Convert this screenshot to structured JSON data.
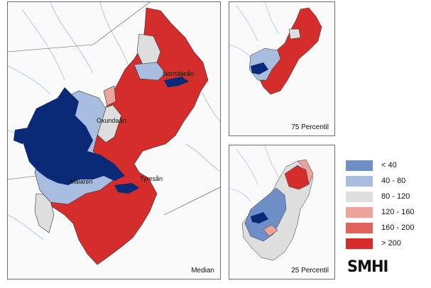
{
  "panels": {
    "median": {
      "caption": "Median"
    },
    "p75": {
      "caption": "75 Percentil"
    },
    "p25": {
      "caption": "25 Percentil"
    }
  },
  "places": {
    "norrtalje": "Norrtäljeån",
    "oxunda": "Oxundaån",
    "malaren": "Mälaren",
    "tyresa": "Tyresån"
  },
  "legend": [
    {
      "label": "< 40",
      "color": "#6e8ec7"
    },
    {
      "label": "40 - 80",
      "color": "#a9bde0"
    },
    {
      "label": "80 - 120",
      "color": "#dedede"
    },
    {
      "label": "120 - 160",
      "color": "#eba39b"
    },
    {
      "label": "160 - 200",
      "color": "#e2635b"
    },
    {
      "label": "> 200",
      "color": "#d42d2b"
    }
  ],
  "logo": "SMHI",
  "colors": {
    "lake": "#0a2a78",
    "river": "#a9cbe8",
    "border": "#333333"
  }
}
